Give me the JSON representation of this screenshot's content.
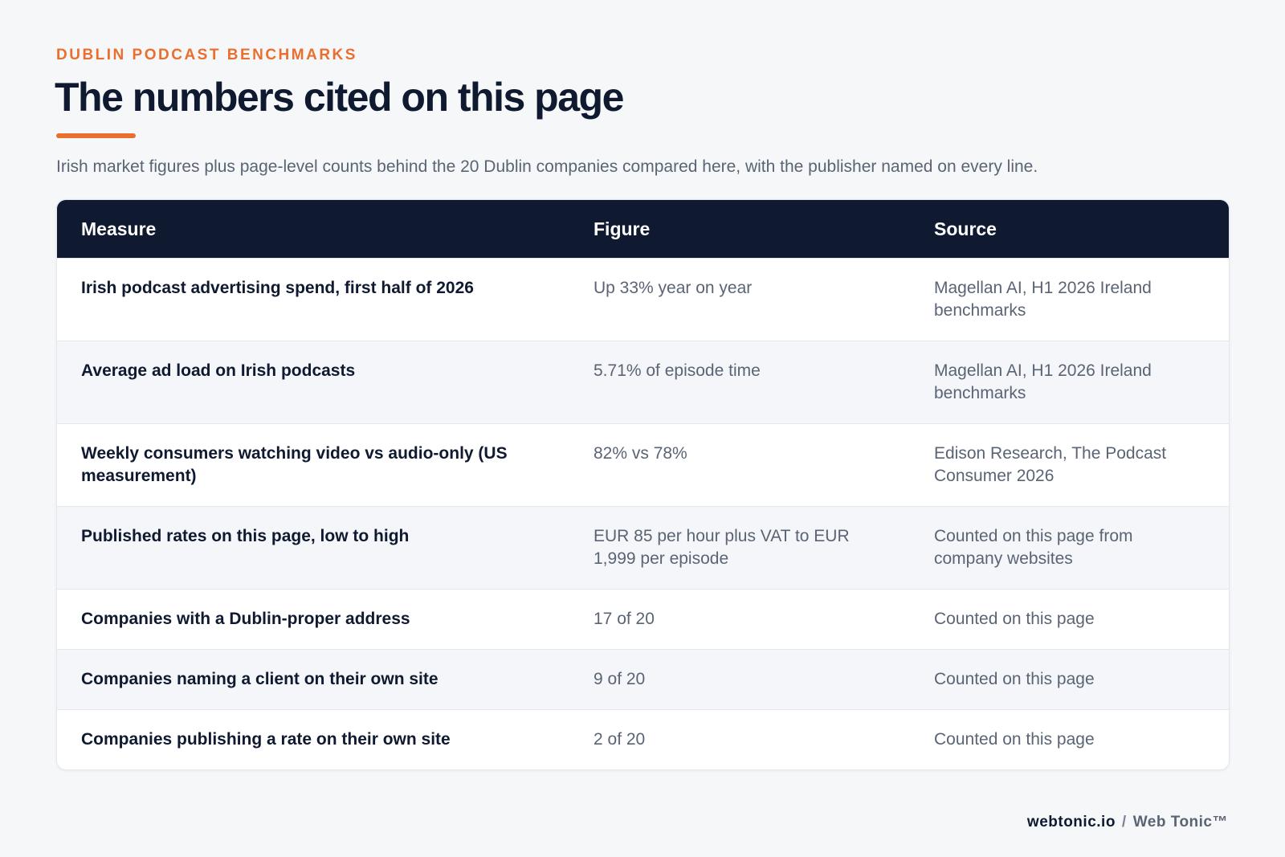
{
  "header": {
    "eyebrow": "DUBLIN PODCAST BENCHMARKS",
    "title": "The numbers cited on this page",
    "subtitle": "Irish market figures plus page-level counts behind the 20 Dublin companies compared here, with the publisher named on every line."
  },
  "table": {
    "columns": [
      "Measure",
      "Figure",
      "Source"
    ],
    "rows": [
      [
        "Irish podcast advertising spend, first half of 2026",
        "Up 33% year on year",
        "Magellan AI, H1 2026 Ireland benchmarks"
      ],
      [
        "Average ad load on Irish podcasts",
        "5.71% of episode time",
        "Magellan AI, H1 2026 Ireland benchmarks"
      ],
      [
        "Weekly consumers watching video vs audio-only (US measurement)",
        "82% vs 78%",
        "Edison Research, The Podcast Consumer 2026"
      ],
      [
        "Published rates on this page, low to high",
        "EUR 85 per hour plus VAT to EUR 1,999 per episode",
        "Counted on this page from company websites"
      ],
      [
        "Companies with a Dublin-proper address",
        "17 of 20",
        "Counted on this page"
      ],
      [
        "Companies naming a client on their own site",
        "9 of 20",
        "Counted on this page"
      ],
      [
        "Companies publishing a rate on their own site",
        "2 of 20",
        "Counted on this page"
      ]
    ]
  },
  "footer": {
    "site": "webtonic.io",
    "separator": "/",
    "brand": "Web Tonic™"
  }
}
